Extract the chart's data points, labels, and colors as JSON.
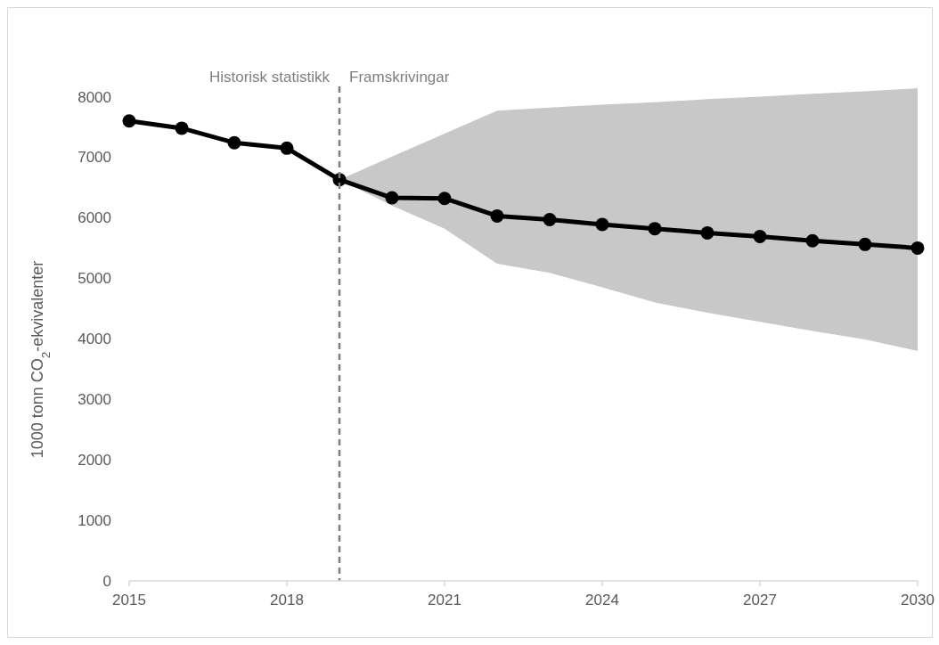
{
  "chart_data": {
    "type": "line",
    "ylabel": "1000 tonn CO$_{2}$-ekvivalenter",
    "x": [
      2015,
      2016,
      2017,
      2018,
      2019,
      2020,
      2021,
      2022,
      2023,
      2024,
      2025,
      2026,
      2027,
      2028,
      2029,
      2030
    ],
    "series": [
      {
        "color": "#000000",
        "values": [
          7600,
          7480,
          7240,
          7150,
          6630,
          6330,
          6320,
          6030,
          5970,
          5890,
          5820,
          5750,
          5690,
          5620,
          5560,
          5500
        ],
        "lower": [
          null,
          null,
          null,
          null,
          6630,
          6200,
          5820,
          5240,
          5090,
          4850,
          4600,
          4430,
          4280,
          4130,
          3990,
          3800
        ],
        "upper": [
          null,
          null,
          null,
          null,
          6630,
          7010,
          7390,
          7770,
          7820,
          7870,
          7910,
          7960,
          8000,
          8050,
          8090,
          8140
        ]
      }
    ],
    "xlim": [
      2015,
      2030
    ],
    "xticks": [
      2015,
      2018,
      2021,
      2024,
      2027,
      2030
    ],
    "ylim": [
      0,
      8200
    ],
    "yticks": [
      0,
      1000,
      2000,
      3000,
      4000,
      5000,
      6000,
      7000,
      8000
    ],
    "ref_lines": [
      {
        "axis": "x",
        "value": 2019,
        "color": "#7f7f7f",
        "line_style": "dashed"
      }
    ],
    "annotations": [
      "Historisk statistikk",
      "Framskrivingar"
    ],
    "grid": false,
    "marker": "circle",
    "line_style": "solid"
  }
}
